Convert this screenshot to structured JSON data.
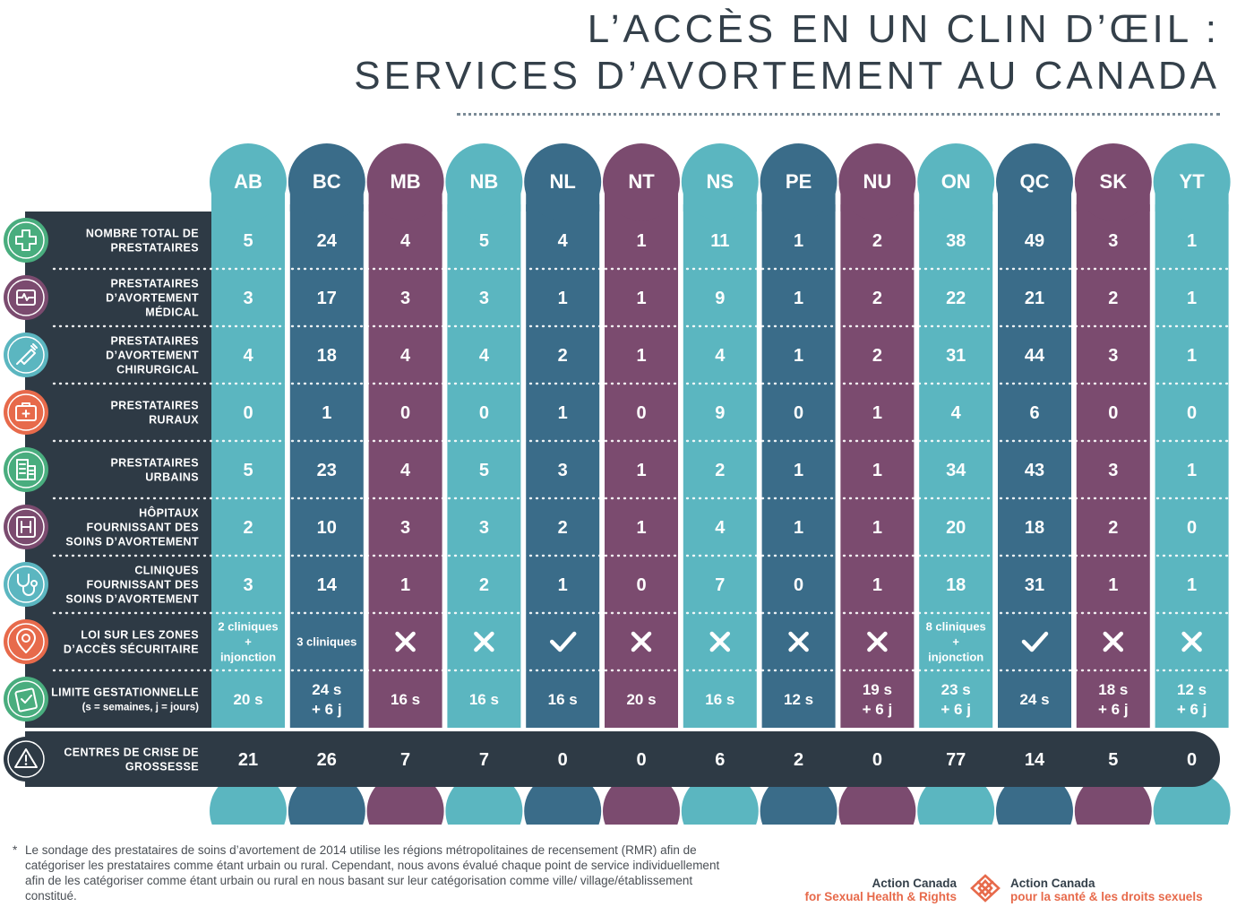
{
  "title_line1": "L’ACCÈS EN UN CLIN D’ŒIL :",
  "title_line2": "SERVICES D’AVORTEMENT AU CANADA",
  "colors": {
    "teal": "#5bb6c0",
    "blue": "#3a6c89",
    "purple": "#7b4b6f",
    "dark": "#2e3a45",
    "icon_green": "#49ad7e",
    "icon_purple": "#7b4b6f",
    "icon_teal": "#5bb6c0",
    "icon_orange": "#e76a4b",
    "accent": "#e76a4b"
  },
  "chart_data": {
    "type": "table",
    "title": "L’ACCÈS EN UN CLIN D’ŒIL : SERVICES D’AVORTEMENT AU CANADA",
    "columns": [
      {
        "code": "AB",
        "color": "teal"
      },
      {
        "code": "BC",
        "color": "blue"
      },
      {
        "code": "MB",
        "color": "purple"
      },
      {
        "code": "NB",
        "color": "teal"
      },
      {
        "code": "NL",
        "color": "blue"
      },
      {
        "code": "NT",
        "color": "purple"
      },
      {
        "code": "NS",
        "color": "teal"
      },
      {
        "code": "PE",
        "color": "blue"
      },
      {
        "code": "NU",
        "color": "purple"
      },
      {
        "code": "ON",
        "color": "teal"
      },
      {
        "code": "QC",
        "color": "blue"
      },
      {
        "code": "SK",
        "color": "purple"
      },
      {
        "code": "YT",
        "color": "teal"
      }
    ],
    "rows": [
      {
        "label": [
          "NOMBRE TOTAL DE",
          "PRESTATAIRES"
        ],
        "icon": "plus-cross-icon",
        "icon_color": "icon_green",
        "values": [
          "5",
          "24",
          "4",
          "5",
          "4",
          "1",
          "11",
          "1",
          "2",
          "38",
          "49",
          "3",
          "1"
        ]
      },
      {
        "label": [
          "PRESTATAIRES",
          "D’AVORTEMENT",
          "MÉDICAL"
        ],
        "icon": "heart-monitor-icon",
        "icon_color": "icon_purple",
        "values": [
          "3",
          "17",
          "3",
          "3",
          "1",
          "1",
          "9",
          "1",
          "2",
          "22",
          "21",
          "2",
          "1"
        ]
      },
      {
        "label": [
          "PRESTATAIRES",
          "D’AVORTEMENT",
          "CHIRURGICAL"
        ],
        "icon": "syringe-icon",
        "icon_color": "icon_teal",
        "values": [
          "4",
          "18",
          "4",
          "4",
          "2",
          "1",
          "4",
          "1",
          "2",
          "31",
          "44",
          "3",
          "1"
        ]
      },
      {
        "label": [
          "PRESTATAIRES",
          "RURAUX"
        ],
        "icon": "medical-kit-icon",
        "icon_color": "icon_orange",
        "values": [
          "0",
          "1",
          "0",
          "0",
          "1",
          "0",
          "9",
          "0",
          "1",
          "4",
          "6",
          "0",
          "0"
        ]
      },
      {
        "label": [
          "PRESTATAIRES",
          "URBAINS"
        ],
        "icon": "building-icon",
        "icon_color": "icon_green",
        "values": [
          "5",
          "23",
          "4",
          "5",
          "3",
          "1",
          "2",
          "1",
          "1",
          "34",
          "43",
          "3",
          "1"
        ]
      },
      {
        "label": [
          "HÔPITAUX",
          "FOURNISSANT DES",
          "SOINS D’AVORTEMENT"
        ],
        "icon": "hospital-icon",
        "icon_color": "icon_purple",
        "values": [
          "2",
          "10",
          "3",
          "3",
          "2",
          "1",
          "4",
          "1",
          "1",
          "20",
          "18",
          "2",
          "0"
        ]
      },
      {
        "label": [
          "CLINIQUES",
          "FOURNISSANT DES",
          "SOINS D’AVORTEMENT"
        ],
        "icon": "stethoscope-icon",
        "icon_color": "icon_teal",
        "values": [
          "3",
          "14",
          "1",
          "2",
          "1",
          "0",
          "7",
          "0",
          "1",
          "18",
          "31",
          "1",
          "1"
        ]
      },
      {
        "label": [
          "LOI SUR LES ZONES",
          "D’ACCÈS SÉCURITAIRE"
        ],
        "icon": "location-pin-icon",
        "icon_color": "icon_orange",
        "values": [
          {
            "lines": [
              "2 cliniques",
              "+",
              "injonction"
            ]
          },
          {
            "lines": [
              "3 cliniques"
            ]
          },
          {
            "mark": "cross"
          },
          {
            "mark": "cross"
          },
          {
            "mark": "check"
          },
          {
            "mark": "cross"
          },
          {
            "mark": "cross"
          },
          {
            "mark": "cross"
          },
          {
            "mark": "cross"
          },
          {
            "lines": [
              "8 cliniques",
              "+",
              "injonction"
            ]
          },
          {
            "mark": "check"
          },
          {
            "mark": "cross"
          },
          {
            "mark": "cross"
          }
        ]
      },
      {
        "label": [
          "LIMITE GESTATIONNELLE",
          "(s = semaines, j = jours)"
        ],
        "icon": "clipboard-check-icon",
        "icon_color": "icon_green",
        "values": [
          {
            "lines": [
              "20 s"
            ]
          },
          {
            "lines": [
              "24 s",
              "+ 6 j"
            ]
          },
          {
            "lines": [
              "16 s"
            ]
          },
          {
            "lines": [
              "16 s"
            ]
          },
          {
            "lines": [
              "16 s"
            ]
          },
          {
            "lines": [
              "20 s"
            ]
          },
          {
            "lines": [
              "16 s"
            ]
          },
          {
            "lines": [
              "12 s"
            ]
          },
          {
            "lines": [
              "19 s",
              "+ 6 j"
            ]
          },
          {
            "lines": [
              "23 s",
              "+ 6 j"
            ]
          },
          {
            "lines": [
              "24 s"
            ]
          },
          {
            "lines": [
              "18 s",
              "+ 6 j"
            ]
          },
          {
            "lines": [
              "12 s",
              "+ 6 j"
            ]
          }
        ]
      }
    ],
    "bottom_row": {
      "label": [
        "CENTRES DE CRISE DE",
        "GROSSESSE"
      ],
      "icon": "warning-icon",
      "values": [
        "21",
        "26",
        "7",
        "7",
        "0",
        "0",
        "6",
        "2",
        "0",
        "77",
        "14",
        "5",
        "0"
      ]
    }
  },
  "footnote": {
    "marker": "*",
    "text": "Le sondage des prestataires de soins d’avortement de 2014 utilise les régions métropolitaines de recensement (RMR) afin de catégoriser les prestataires comme étant urbain ou rural. Cependant, nous avons évalué chaque point de service individuellement afin de les catégoriser comme étant urbain ou rural en nous basant sur leur catégorisation comme ville/ village/établissement constitué."
  },
  "logo": {
    "en_line1": "Action Canada",
    "en_line2": "for Sexual Health & Rights",
    "fr_line1": "Action Canada",
    "fr_line2": "pour la santé & les droits sexuels",
    "mark_icon": "action-canada-knot-icon"
  }
}
